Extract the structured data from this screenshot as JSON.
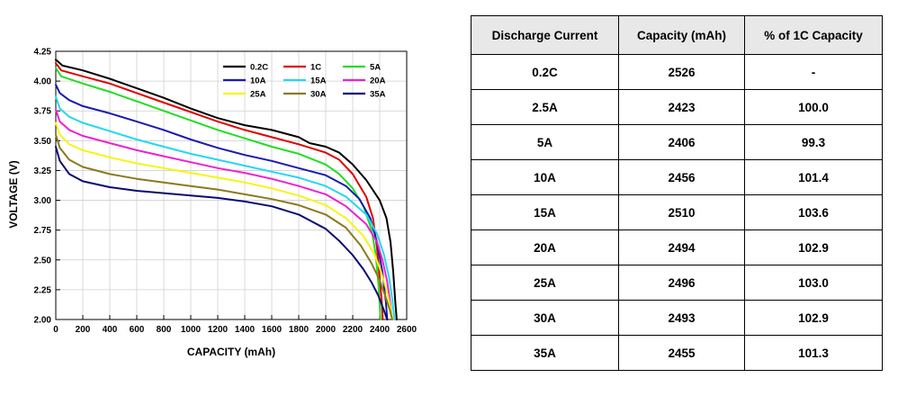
{
  "chart_data": {
    "type": "line",
    "title": "",
    "xlabel": "CAPACITY (mAh)",
    "ylabel": "VOLTAGE (V)",
    "xlim": [
      0,
      2600
    ],
    "ylim": [
      2.0,
      4.25
    ],
    "xticks": [
      0,
      200,
      400,
      600,
      800,
      1000,
      1200,
      1400,
      1600,
      1800,
      2000,
      2200,
      2400,
      2600
    ],
    "yticks": [
      2.0,
      2.25,
      2.5,
      2.75,
      3.0,
      3.25,
      3.5,
      3.75,
      4.0,
      4.25
    ],
    "ytick_labels": [
      "2.00",
      "2.25",
      "2.50",
      "2.75",
      "3.00",
      "3.25",
      "3.50",
      "3.75",
      "4.00",
      "4.25"
    ],
    "grid": true,
    "legend_position": "top-right",
    "series": [
      {
        "name": "0.2C",
        "color": "#000000",
        "x": [
          0,
          50,
          200,
          400,
          600,
          800,
          1000,
          1200,
          1400,
          1600,
          1800,
          1880,
          2000,
          2100,
          2200,
          2300,
          2400,
          2450,
          2480,
          2500,
          2515,
          2526
        ],
        "y": [
          4.18,
          4.13,
          4.09,
          4.02,
          3.94,
          3.86,
          3.77,
          3.69,
          3.63,
          3.59,
          3.53,
          3.48,
          3.45,
          3.4,
          3.3,
          3.17,
          3.0,
          2.85,
          2.65,
          2.4,
          2.15,
          2.0
        ]
      },
      {
        "name": "1C",
        "color": "#e00000",
        "x": [
          0,
          40,
          200,
          400,
          600,
          800,
          1000,
          1200,
          1400,
          1600,
          1800,
          2000,
          2100,
          2200,
          2300,
          2350,
          2380,
          2400,
          2415,
          2423
        ],
        "y": [
          4.15,
          4.09,
          4.04,
          3.98,
          3.9,
          3.82,
          3.74,
          3.66,
          3.59,
          3.53,
          3.47,
          3.4,
          3.34,
          3.22,
          3.03,
          2.85,
          2.6,
          2.35,
          2.15,
          2.0
        ]
      },
      {
        "name": "5A",
        "color": "#22dd22",
        "x": [
          0,
          40,
          200,
          400,
          600,
          800,
          1000,
          1200,
          1400,
          1600,
          1800,
          2000,
          2100,
          2200,
          2280,
          2340,
          2370,
          2390,
          2400,
          2406
        ],
        "y": [
          4.11,
          4.04,
          3.98,
          3.91,
          3.83,
          3.75,
          3.67,
          3.59,
          3.52,
          3.45,
          3.39,
          3.3,
          3.22,
          3.1,
          2.95,
          2.75,
          2.55,
          2.3,
          2.12,
          2.0
        ]
      },
      {
        "name": "10A",
        "color": "#1a1ab0",
        "x": [
          0,
          30,
          100,
          200,
          400,
          600,
          800,
          1000,
          1200,
          1400,
          1600,
          1800,
          2000,
          2150,
          2250,
          2330,
          2380,
          2420,
          2445,
          2456
        ],
        "y": [
          3.97,
          3.9,
          3.84,
          3.79,
          3.73,
          3.66,
          3.59,
          3.51,
          3.44,
          3.38,
          3.33,
          3.27,
          3.21,
          3.12,
          3.01,
          2.85,
          2.65,
          2.4,
          2.15,
          2.0
        ]
      },
      {
        "name": "15A",
        "color": "#22d8f0",
        "x": [
          0,
          30,
          100,
          200,
          400,
          600,
          800,
          1000,
          1200,
          1400,
          1600,
          1800,
          2000,
          2150,
          2300,
          2380,
          2430,
          2470,
          2495,
          2510
        ],
        "y": [
          3.87,
          3.77,
          3.7,
          3.65,
          3.58,
          3.51,
          3.45,
          3.39,
          3.34,
          3.29,
          3.24,
          3.19,
          3.12,
          3.03,
          2.88,
          2.72,
          2.55,
          2.35,
          2.15,
          2.0
        ]
      },
      {
        "name": "20A",
        "color": "#ee22cc",
        "x": [
          0,
          30,
          100,
          200,
          400,
          600,
          800,
          1000,
          1200,
          1400,
          1600,
          1800,
          2000,
          2150,
          2300,
          2380,
          2420,
          2455,
          2480,
          2494
        ],
        "y": [
          3.76,
          3.66,
          3.59,
          3.54,
          3.48,
          3.42,
          3.37,
          3.32,
          3.27,
          3.23,
          3.18,
          3.12,
          3.05,
          2.95,
          2.8,
          2.65,
          2.5,
          2.32,
          2.12,
          2.0
        ]
      },
      {
        "name": "25A",
        "color": "#f5f515",
        "x": [
          0,
          30,
          100,
          200,
          400,
          600,
          800,
          1000,
          1200,
          1400,
          1600,
          1800,
          2000,
          2150,
          2280,
          2360,
          2410,
          2450,
          2480,
          2496
        ],
        "y": [
          3.65,
          3.55,
          3.47,
          3.42,
          3.36,
          3.31,
          3.27,
          3.23,
          3.19,
          3.15,
          3.1,
          3.04,
          2.96,
          2.85,
          2.7,
          2.55,
          2.4,
          2.25,
          2.1,
          2.0
        ]
      },
      {
        "name": "30A",
        "color": "#8b7a1a",
        "x": [
          0,
          30,
          100,
          200,
          400,
          600,
          800,
          1000,
          1200,
          1400,
          1600,
          1800,
          2000,
          2150,
          2260,
          2340,
          2400,
          2440,
          2475,
          2493
        ],
        "y": [
          3.55,
          3.44,
          3.34,
          3.28,
          3.22,
          3.18,
          3.15,
          3.12,
          3.09,
          3.05,
          3.01,
          2.96,
          2.88,
          2.77,
          2.62,
          2.47,
          2.33,
          2.2,
          2.08,
          2.0
        ]
      },
      {
        "name": "35A",
        "color": "#0a0a70",
        "x": [
          0,
          30,
          100,
          200,
          400,
          600,
          800,
          1000,
          1200,
          1400,
          1600,
          1800,
          2000,
          2100,
          2200,
          2280,
          2340,
          2390,
          2430,
          2455
        ],
        "y": [
          3.45,
          3.33,
          3.22,
          3.16,
          3.11,
          3.08,
          3.06,
          3.04,
          3.02,
          2.99,
          2.95,
          2.88,
          2.76,
          2.66,
          2.54,
          2.42,
          2.31,
          2.2,
          2.08,
          2.0
        ]
      }
    ]
  },
  "table": {
    "headers": [
      "Discharge Current",
      "Capacity (mAh)",
      "% of 1C Capacity"
    ],
    "rows": [
      [
        "0.2C",
        "2526",
        "-"
      ],
      [
        "2.5A",
        "2423",
        "100.0"
      ],
      [
        "5A",
        "2406",
        "99.3"
      ],
      [
        "10A",
        "2456",
        "101.4"
      ],
      [
        "15A",
        "2510",
        "103.6"
      ],
      [
        "20A",
        "2494",
        "102.9"
      ],
      [
        "25A",
        "2496",
        "103.0"
      ],
      [
        "30A",
        "2493",
        "102.9"
      ],
      [
        "35A",
        "2455",
        "101.3"
      ]
    ]
  }
}
